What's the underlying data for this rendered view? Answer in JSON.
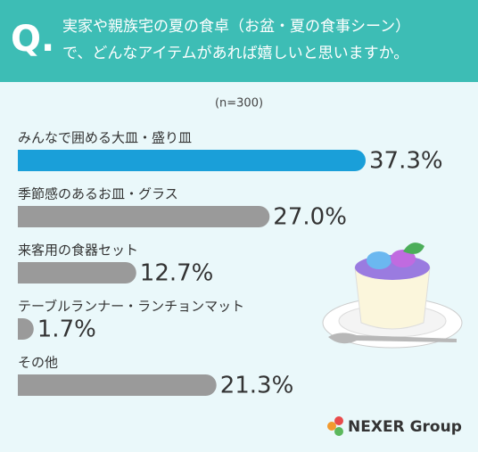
{
  "chart_data": {
    "type": "bar",
    "orientation": "horizontal",
    "question_label": "Q.",
    "title": [
      "実家や親族宅の夏の食卓（お盆・夏の食事シーン）",
      "で、どんなアイテムがあれば嬉しいと思いますか。"
    ],
    "subtitle": "(n=300)",
    "categories": [
      "みんなで囲める大皿・盛り皿",
      "季節感のあるお皿・グラス",
      "来客用の食器セット",
      "テーブルランナー・ランチョンマット",
      "その他"
    ],
    "values": [
      37.3,
      27.0,
      12.7,
      1.7,
      21.3
    ],
    "value_labels": [
      "37.3%",
      "27.0%",
      "12.7%",
      "1.7%",
      "21.3%"
    ],
    "colors": [
      "#1a9fd9",
      "#9a9a9a",
      "#9a9a9a",
      "#9a9a9a",
      "#9a9a9a"
    ],
    "highlight_color": "#1a9fd9"
  },
  "brand": "NEXER Group"
}
